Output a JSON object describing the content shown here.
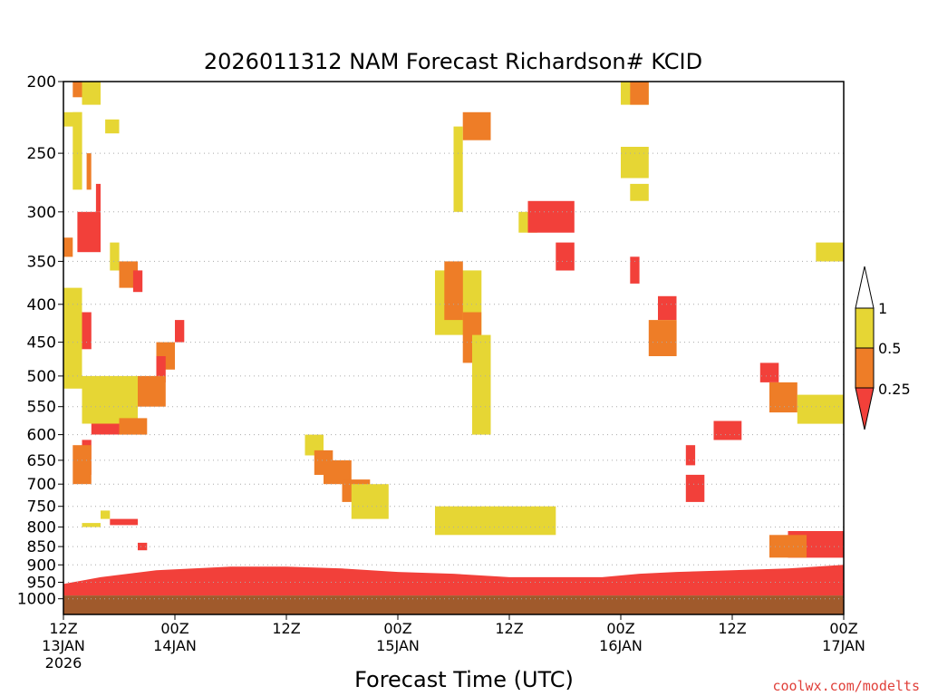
{
  "chart_data": {
    "type": "heatmap",
    "title": "2026011312 NAM Forecast Richardson# KCID",
    "xlabel": "Forecast Time (UTC)",
    "ylabel": "",
    "credit": "coolwx.com/modelts",
    "y_scale": "log-pressure",
    "ylim": [
      1050,
      200
    ],
    "xlim_hours": [
      0,
      84
    ],
    "y_ticks": [
      {
        "value": 200,
        "label": "200"
      },
      {
        "value": 250,
        "label": "250"
      },
      {
        "value": 300,
        "label": "300"
      },
      {
        "value": 350,
        "label": "350"
      },
      {
        "value": 400,
        "label": "400"
      },
      {
        "value": 450,
        "label": "450"
      },
      {
        "value": 500,
        "label": "500"
      },
      {
        "value": 550,
        "label": "550"
      },
      {
        "value": 600,
        "label": "600"
      },
      {
        "value": 650,
        "label": "650"
      },
      {
        "value": 700,
        "label": "700"
      },
      {
        "value": 750,
        "label": "750"
      },
      {
        "value": 800,
        "label": "800"
      },
      {
        "value": 850,
        "label": "850"
      },
      {
        "value": 900,
        "label": "900"
      },
      {
        "value": 950,
        "label": "950"
      },
      {
        "value": 1000,
        "label": "1000"
      }
    ],
    "x_ticks": [
      {
        "hour": 0,
        "lines": [
          "12Z",
          "13JAN",
          "2026"
        ]
      },
      {
        "hour": 12,
        "lines": [
          "00Z",
          "14JAN"
        ]
      },
      {
        "hour": 24,
        "lines": [
          "12Z"
        ]
      },
      {
        "hour": 36,
        "lines": [
          "00Z",
          "15JAN"
        ]
      },
      {
        "hour": 48,
        "lines": [
          "12Z"
        ]
      },
      {
        "hour": 60,
        "lines": [
          "00Z",
          "16JAN"
        ]
      },
      {
        "hour": 72,
        "lines": [
          "12Z"
        ]
      },
      {
        "hour": 84,
        "lines": [
          "00Z",
          "17JAN"
        ]
      }
    ],
    "legend": {
      "thresholds": [
        "1",
        "0.5",
        "0.25"
      ],
      "bins": [
        {
          "range": "> 1",
          "color": "#ffffff"
        },
        {
          "range": "0.5 - 1",
          "color": "#e6d634"
        },
        {
          "range": "0.25 - 0.5",
          "color": "#ee7d27"
        },
        {
          "range": "< 0.25",
          "color": "#f2403a"
        }
      ]
    },
    "colors": {
      "yellow": "#e6d634",
      "orange": "#ee7d27",
      "red": "#f2403a",
      "ground": "#a05a2c",
      "grid": "#aaaaaa"
    },
    "ground_pressure_hpa": 990,
    "boundary_layer": {
      "description": "Ri < 0.25 near surface",
      "top_pressure_hpa": [
        [
          0,
          955
        ],
        [
          4,
          935
        ],
        [
          10,
          915
        ],
        [
          18,
          905
        ],
        [
          24,
          905
        ],
        [
          30,
          910
        ],
        [
          36,
          920
        ],
        [
          42,
          925
        ],
        [
          48,
          935
        ],
        [
          54,
          935
        ],
        [
          58,
          935
        ],
        [
          62,
          925
        ],
        [
          66,
          920
        ],
        [
          72,
          915
        ],
        [
          78,
          910
        ],
        [
          84,
          900
        ]
      ]
    },
    "cells": [
      {
        "hour": 0,
        "hour_end": 2,
        "p_top": 220,
        "p_bottom": 230,
        "cat": "yellow"
      },
      {
        "hour": 1,
        "hour_end": 2.5,
        "p_top": 200,
        "p_bottom": 210,
        "cat": "orange"
      },
      {
        "hour": 2,
        "hour_end": 4,
        "p_top": 200,
        "p_bottom": 215,
        "cat": "yellow"
      },
      {
        "hour": 1,
        "hour_end": 2,
        "p_top": 220,
        "p_bottom": 280,
        "cat": "yellow"
      },
      {
        "hour": 2.5,
        "hour_end": 3,
        "p_top": 250,
        "p_bottom": 280,
        "cat": "orange"
      },
      {
        "hour": 4.5,
        "hour_end": 6,
        "p_top": 225,
        "p_bottom": 235,
        "cat": "yellow"
      },
      {
        "hour": 1.5,
        "hour_end": 4,
        "p_top": 300,
        "p_bottom": 340,
        "cat": "red"
      },
      {
        "hour": 3.5,
        "hour_end": 4,
        "p_top": 275,
        "p_bottom": 300,
        "cat": "red"
      },
      {
        "hour": 0,
        "hour_end": 1,
        "p_top": 325,
        "p_bottom": 345,
        "cat": "orange"
      },
      {
        "hour": 0,
        "hour_end": 3,
        "p_top": 410,
        "p_bottom": 460,
        "cat": "red"
      },
      {
        "hour": 0,
        "hour_end": 2,
        "p_top": 380,
        "p_bottom": 520,
        "cat": "yellow"
      },
      {
        "hour": 5,
        "hour_end": 6,
        "p_top": 330,
        "p_bottom": 360,
        "cat": "yellow"
      },
      {
        "hour": 6,
        "hour_end": 8,
        "p_top": 350,
        "p_bottom": 380,
        "cat": "orange"
      },
      {
        "hour": 7.5,
        "hour_end": 8.5,
        "p_top": 360,
        "p_bottom": 385,
        "cat": "red"
      },
      {
        "hour": 10,
        "hour_end": 12,
        "p_top": 450,
        "p_bottom": 490,
        "cat": "orange"
      },
      {
        "hour": 10,
        "hour_end": 11,
        "p_top": 470,
        "p_bottom": 510,
        "cat": "red"
      },
      {
        "hour": 12,
        "hour_end": 13,
        "p_top": 420,
        "p_bottom": 450,
        "cat": "red"
      },
      {
        "hour": 8,
        "hour_end": 11,
        "p_top": 500,
        "p_bottom": 550,
        "cat": "orange"
      },
      {
        "hour": 3,
        "hour_end": 6,
        "p_top": 520,
        "p_bottom": 600,
        "cat": "red"
      },
      {
        "hour": 2,
        "hour_end": 8,
        "p_top": 500,
        "p_bottom": 580,
        "cat": "yellow"
      },
      {
        "hour": 6,
        "hour_end": 9,
        "p_top": 570,
        "p_bottom": 600,
        "cat": "orange"
      },
      {
        "hour": 2,
        "hour_end": 3,
        "p_top": 610,
        "p_bottom": 680,
        "cat": "red"
      },
      {
        "hour": 1,
        "hour_end": 3,
        "p_top": 620,
        "p_bottom": 700,
        "cat": "orange"
      },
      {
        "hour": 4,
        "hour_end": 5,
        "p_top": 760,
        "p_bottom": 780,
        "cat": "yellow"
      },
      {
        "hour": 5,
        "hour_end": 8,
        "p_top": 780,
        "p_bottom": 795,
        "cat": "red"
      },
      {
        "hour": 2,
        "hour_end": 4,
        "p_top": 790,
        "p_bottom": 800,
        "cat": "yellow"
      },
      {
        "hour": 8,
        "hour_end": 9,
        "p_top": 840,
        "p_bottom": 860,
        "cat": "red"
      },
      {
        "hour": 26,
        "hour_end": 28,
        "p_top": 600,
        "p_bottom": 640,
        "cat": "yellow"
      },
      {
        "hour": 27,
        "hour_end": 29,
        "p_top": 630,
        "p_bottom": 680,
        "cat": "orange"
      },
      {
        "hour": 28,
        "hour_end": 31,
        "p_top": 650,
        "p_bottom": 700,
        "cat": "orange"
      },
      {
        "hour": 30,
        "hour_end": 33,
        "p_top": 690,
        "p_bottom": 740,
        "cat": "orange"
      },
      {
        "hour": 31,
        "hour_end": 35,
        "p_top": 700,
        "p_bottom": 780,
        "cat": "yellow"
      },
      {
        "hour": 40,
        "hour_end": 45,
        "p_top": 360,
        "p_bottom": 440,
        "cat": "yellow"
      },
      {
        "hour": 41,
        "hour_end": 43,
        "p_top": 350,
        "p_bottom": 420,
        "cat": "orange"
      },
      {
        "hour": 43,
        "hour_end": 45,
        "p_top": 410,
        "p_bottom": 480,
        "cat": "orange"
      },
      {
        "hour": 44,
        "hour_end": 46,
        "p_top": 440,
        "p_bottom": 600,
        "cat": "yellow"
      },
      {
        "hour": 43,
        "hour_end": 46,
        "p_top": 220,
        "p_bottom": 240,
        "cat": "orange"
      },
      {
        "hour": 42,
        "hour_end": 43,
        "p_top": 230,
        "p_bottom": 300,
        "cat": "yellow"
      },
      {
        "hour": 49,
        "hour_end": 51,
        "p_top": 300,
        "p_bottom": 320,
        "cat": "yellow"
      },
      {
        "hour": 50,
        "hour_end": 55,
        "p_top": 290,
        "p_bottom": 320,
        "cat": "red"
      },
      {
        "hour": 53,
        "hour_end": 55,
        "p_top": 330,
        "p_bottom": 360,
        "cat": "red"
      },
      {
        "hour": 40,
        "hour_end": 53,
        "p_top": 750,
        "p_bottom": 820,
        "cat": "yellow"
      },
      {
        "hour": 60,
        "hour_end": 63,
        "p_top": 200,
        "p_bottom": 215,
        "cat": "yellow"
      },
      {
        "hour": 61,
        "hour_end": 63,
        "p_top": 200,
        "p_bottom": 215,
        "cat": "orange"
      },
      {
        "hour": 60,
        "hour_end": 63,
        "p_top": 245,
        "p_bottom": 270,
        "cat": "yellow"
      },
      {
        "hour": 61,
        "hour_end": 63,
        "p_top": 275,
        "p_bottom": 290,
        "cat": "yellow"
      },
      {
        "hour": 61,
        "hour_end": 62,
        "p_top": 345,
        "p_bottom": 375,
        "cat": "red"
      },
      {
        "hour": 64,
        "hour_end": 66,
        "p_top": 390,
        "p_bottom": 420,
        "cat": "red"
      },
      {
        "hour": 63,
        "hour_end": 66,
        "p_top": 420,
        "p_bottom": 470,
        "cat": "orange"
      },
      {
        "hour": 67,
        "hour_end": 68,
        "p_top": 620,
        "p_bottom": 660,
        "cat": "red"
      },
      {
        "hour": 67,
        "hour_end": 69,
        "p_top": 680,
        "p_bottom": 740,
        "cat": "red"
      },
      {
        "hour": 70,
        "hour_end": 73,
        "p_top": 575,
        "p_bottom": 610,
        "cat": "red"
      },
      {
        "hour": 75,
        "hour_end": 77,
        "p_top": 480,
        "p_bottom": 510,
        "cat": "red"
      },
      {
        "hour": 76,
        "hour_end": 79,
        "p_top": 510,
        "p_bottom": 560,
        "cat": "orange"
      },
      {
        "hour": 79,
        "hour_end": 84,
        "p_top": 530,
        "p_bottom": 580,
        "cat": "yellow"
      },
      {
        "hour": 81,
        "hour_end": 84,
        "p_top": 330,
        "p_bottom": 350,
        "cat": "yellow"
      },
      {
        "hour": 78,
        "hour_end": 84,
        "p_top": 810,
        "p_bottom": 880,
        "cat": "red"
      },
      {
        "hour": 76,
        "hour_end": 80,
        "p_top": 820,
        "p_bottom": 880,
        "cat": "orange"
      }
    ]
  }
}
